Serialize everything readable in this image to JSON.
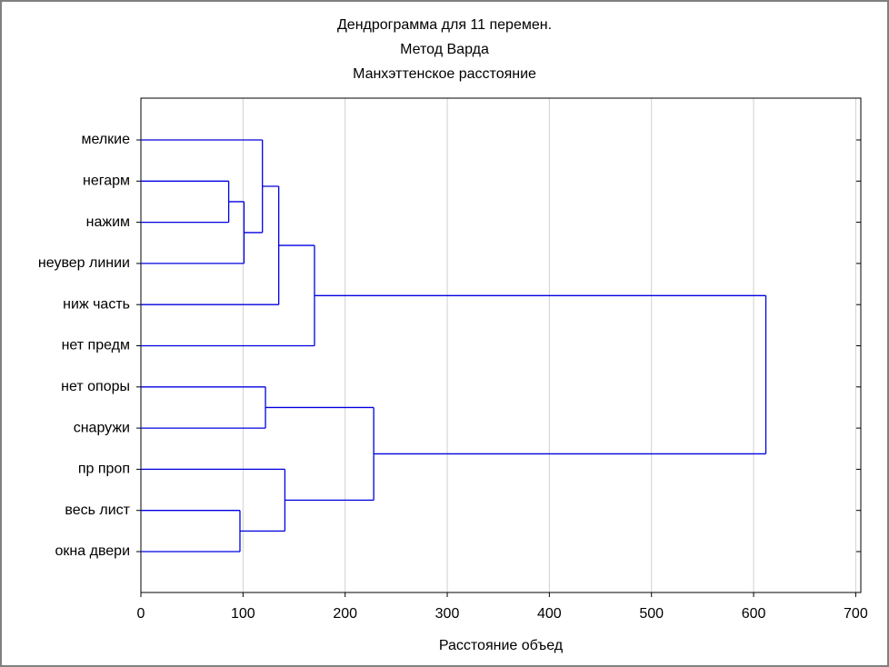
{
  "chart_data": {
    "type": "dendrogram",
    "title": [
      "Дендрограмма для 11  перемен.",
      "Метод Варда",
      "Манхэттенское расстояние"
    ],
    "x_label": "Расстояние объед",
    "xlim": [
      0,
      705
    ],
    "xticks": [
      0,
      100,
      200,
      300,
      400,
      500,
      600,
      700
    ],
    "grid": true,
    "color": "#0000e0",
    "tree": {
      "height": 612,
      "children": [
        {
          "height": 170,
          "children": [
            {
              "height": 135,
              "children": [
                {
                  "height": 119,
                  "children": [
                    "мелкие",
                    {
                      "height": 101,
                      "children": [
                        {
                          "height": 86,
                          "children": [
                            "негарм",
                            "нажим"
                          ]
                        },
                        "неувер линии"
                      ]
                    }
                  ]
                },
                "ниж часть"
              ]
            },
            "нет предм"
          ]
        },
        {
          "height": 228,
          "children": [
            {
              "height": 122,
              "children": [
                "нет опоры",
                "снаружи"
              ]
            },
            {
              "height": 141,
              "children": [
                "пр проп",
                {
                  "height": 97,
                  "children": [
                    "весь лист",
                    "окна двери"
                  ]
                }
              ]
            }
          ]
        }
      ]
    }
  }
}
